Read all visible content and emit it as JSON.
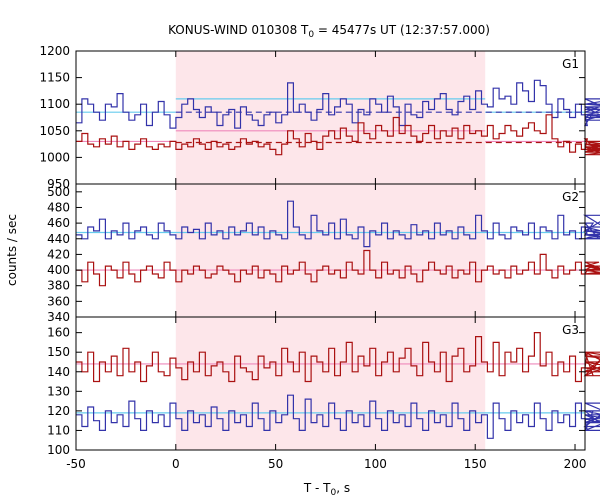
{
  "chart_data": {
    "type": "line",
    "title_prefix": "KONUS-WIND 010308 T",
    "title_sub": "0",
    "title_suffix": " = 45477s UT (12:37:57.000)",
    "xlabel_prefix": "T - T",
    "xlabel_sub": "0",
    "xlabel_suffix": ", s",
    "ylabel": "counts / sec",
    "xlim": [
      -50,
      205
    ],
    "xticks": [
      -50,
      0,
      50,
      100,
      150,
      200
    ],
    "shaded_interval": [
      0,
      155
    ],
    "colors": {
      "blue": "#3333aa",
      "red": "#aa1111",
      "light_blue": "#66ccee",
      "pink": "#ee88bb",
      "shade": "#fde6ea"
    },
    "panels": [
      {
        "name": "G1",
        "ylim": [
          950,
          1200
        ],
        "yticks": [
          950,
          1000,
          1050,
          1100,
          1150,
          1200
        ],
        "series": [
          {
            "color": "blue",
            "x_start": -50,
            "step": 2.944,
            "values": [
              1065,
              1110,
              1100,
              1085,
              1070,
              1100,
              1095,
              1120,
              1085,
              1070,
              1080,
              1100,
              1060,
              1085,
              1105,
              1080,
              1055,
              1075,
              1100,
              1110,
              1090,
              1075,
              1095,
              1085,
              1060,
              1080,
              1090,
              1055,
              1095,
              1080,
              1070,
              1060,
              1080,
              1085,
              1065,
              1080,
              1140,
              1085,
              1100,
              1085,
              1070,
              1090,
              1120,
              1080,
              1095,
              1110,
              1100,
              1065,
              1090,
              1080,
              1110,
              1100,
              1085,
              1115,
              1095,
              1060,
              1100,
              1080,
              1075,
              1105,
              1090,
              1110,
              1120,
              1090,
              1080,
              1105,
              1115,
              1090,
              1125,
              1100,
              1095,
              1130,
              1110,
              1115,
              1100,
              1140,
              1125,
              1105,
              1145,
              1135,
              1100,
              1075,
              1110,
              1090,
              1075,
              1100,
              1080,
              1060,
              1085,
              1095,
              1075,
              1100,
              1110,
              1080,
              1095,
              1080,
              1070,
              1100,
              1090
            ]
          },
          {
            "color": "red",
            "x_start": -50,
            "step": 2.944,
            "values": [
              1030,
              1045,
              1025,
              1020,
              1035,
              1025,
              1040,
              1020,
              1030,
              1015,
              1025,
              1035,
              1020,
              1015,
              1025,
              1020,
              1030,
              1015,
              1025,
              1020,
              1035,
              1025,
              1015,
              1030,
              1020,
              1025,
              1015,
              1020,
              1035,
              1025,
              1030,
              1020,
              1025,
              1015,
              1005,
              1025,
              1050,
              1035,
              1020,
              1045,
              1030,
              1015,
              1040,
              1050,
              1035,
              1055,
              1040,
              1030,
              1065,
              1045,
              1035,
              1060,
              1050,
              1040,
              1075,
              1045,
              1060,
              1040,
              1030,
              1045,
              1060,
              1035,
              1050,
              1040,
              1055,
              1035,
              1060,
              1045,
              1050,
              1040,
              1060,
              1035,
              1045,
              1060,
              1050,
              1040,
              1055,
              1065,
              1050,
              1045,
              1080,
              1035,
              1020,
              1030,
              1010,
              1025,
              1015,
              1035,
              1020,
              1010,
              1025,
              1015,
              1030,
              1020,
              1010,
              1025,
              1015,
              1005,
              1020
            ]
          }
        ],
        "levels": [
          {
            "color": "light_blue",
            "y": 1085,
            "x": [
              -50,
              0
            ],
            "dash": false
          },
          {
            "color": "light_blue",
            "y": 1110,
            "x": [
              0,
              155
            ],
            "dash": false
          },
          {
            "color": "light_blue",
            "y": 1085,
            "x": [
              155,
              205
            ],
            "dash": false
          },
          {
            "color": "blue",
            "y": 1085,
            "x": [
              0,
              205
            ],
            "dash": true
          },
          {
            "color": "pink",
            "y": 1030,
            "x": [
              -50,
              0
            ],
            "dash": false
          },
          {
            "color": "pink",
            "y": 1050,
            "x": [
              0,
              155
            ],
            "dash": false
          },
          {
            "color": "pink",
            "y": 1030,
            "x": [
              155,
              205
            ],
            "dash": false
          },
          {
            "color": "red",
            "y": 1028,
            "x": [
              0,
              205
            ],
            "dash": true
          }
        ]
      },
      {
        "name": "G2",
        "ylim": [
          340,
          510
        ],
        "yticks": [
          340,
          360,
          380,
          400,
          420,
          440,
          460,
          480,
          500
        ],
        "series": [
          {
            "color": "blue",
            "x_start": -50,
            "step": 2.944,
            "values": [
              445,
              440,
              455,
              450,
              465,
              440,
              450,
              445,
              460,
              440,
              450,
              455,
              445,
              440,
              460,
              450,
              445,
              440,
              455,
              448,
              452,
              440,
              460,
              445,
              450,
              440,
              455,
              445,
              450,
              460,
              445,
              455,
              440,
              450,
              445,
              440,
              488,
              455,
              445,
              440,
              470,
              450,
              445,
              460,
              440,
              465,
              445,
              440,
              455,
              430,
              450,
              445,
              460,
              440,
              450,
              445,
              440,
              458,
              445,
              450,
              440,
              460,
              445,
              450,
              440,
              455,
              445,
              440,
              470,
              450,
              440,
              460,
              445,
              440,
              455,
              450,
              445,
              460,
              440,
              455,
              450,
              440,
              470,
              445,
              450,
              440,
              455,
              445,
              460,
              440,
              450,
              470,
              445,
              440,
              455,
              440,
              445,
              450,
              440
            ]
          },
          {
            "color": "red",
            "x_start": -50,
            "step": 2.944,
            "values": [
              400,
              385,
              410,
              395,
              380,
              405,
              400,
              390,
              410,
              395,
              385,
              400,
              405,
              395,
              390,
              410,
              400,
              385,
              400,
              395,
              405,
              400,
              390,
              395,
              405,
              400,
              395,
              385,
              400,
              395,
              405,
              390,
              400,
              395,
              385,
              405,
              395,
              400,
              410,
              395,
              385,
              400,
              405,
              395,
              400,
              390,
              410,
              400,
              395,
              425,
              400,
              390,
              410,
              395,
              400,
              390,
              405,
              395,
              385,
              400,
              410,
              400,
              395,
              405,
              390,
              400,
              395,
              410,
              385,
              400,
              405,
              395,
              400,
              390,
              405,
              395,
              400,
              410,
              395,
              420,
              400,
              390,
              405,
              395,
              400,
              410,
              395,
              400,
              405,
              410,
              400,
              395,
              400,
              405,
              395,
              400,
              405,
              395,
              400
            ]
          }
        ],
        "levels": [
          {
            "color": "light_blue",
            "y": 448,
            "x": [
              -50,
              205
            ],
            "dash": false
          },
          {
            "color": "pink",
            "y": 400,
            "x": [
              -50,
              205
            ],
            "dash": false
          }
        ]
      },
      {
        "name": "G3",
        "ylim": [
          100,
          168
        ],
        "yticks": [
          100,
          110,
          120,
          130,
          140,
          150,
          160
        ],
        "series": [
          {
            "color": "red",
            "x_start": -50,
            "step": 2.944,
            "values": [
              145,
              140,
              150,
              135,
              145,
              140,
              148,
              138,
              152,
              140,
              145,
              135,
              143,
              150,
              140,
              138,
              147,
              142,
              136,
              145,
              140,
              150,
              138,
              143,
              145,
              140,
              135,
              148,
              142,
              140,
              136,
              148,
              142,
              145,
              138,
              152,
              145,
              140,
              150,
              135,
              148,
              145,
              140,
              152,
              138,
              145,
              155,
              140,
              148,
              143,
              152,
              138,
              145,
              150,
              140,
              147,
              152,
              143,
              138,
              155,
              145,
              140,
              150,
              135,
              148,
              152,
              140,
              143,
              158,
              145,
              140,
              155,
              138,
              150,
              145,
              152,
              140,
              148,
              160,
              143,
              150,
              138,
              145,
              140,
              148,
              135,
              142,
              150,
              138,
              145,
              140,
              150,
              142,
              138,
              148,
              145,
              140,
              150,
              145
            ]
          },
          {
            "color": "blue",
            "x_start": -50,
            "step": 2.944,
            "values": [
              118,
              112,
              122,
              115,
              110,
              120,
              114,
              118,
              112,
              125,
              116,
              110,
              120,
              114,
              118,
              112,
              124,
              116,
              110,
              120,
              114,
              118,
              112,
              122,
              116,
              110,
              120,
              114,
              118,
              112,
              124,
              116,
              110,
              120,
              114,
              118,
              128,
              116,
              110,
              126,
              114,
              118,
              112,
              124,
              116,
              110,
              120,
              114,
              118,
              112,
              125,
              116,
              110,
              120,
              114,
              118,
              112,
              124,
              116,
              110,
              120,
              114,
              118,
              112,
              124,
              116,
              110,
              120,
              114,
              118,
              106,
              124,
              116,
              110,
              120,
              114,
              118,
              112,
              124,
              116,
              110,
              120,
              114,
              118,
              112,
              124,
              116,
              110,
              120,
              114,
              118,
              112,
              124,
              116,
              110,
              120,
              114,
              118,
              112
            ]
          }
        ],
        "levels": [
          {
            "color": "pink",
            "y": 144,
            "x": [
              -50,
              205
            ],
            "dash": false
          },
          {
            "color": "light_blue",
            "y": 119,
            "x": [
              -50,
              205
            ],
            "dash": false
          }
        ]
      }
    ]
  }
}
